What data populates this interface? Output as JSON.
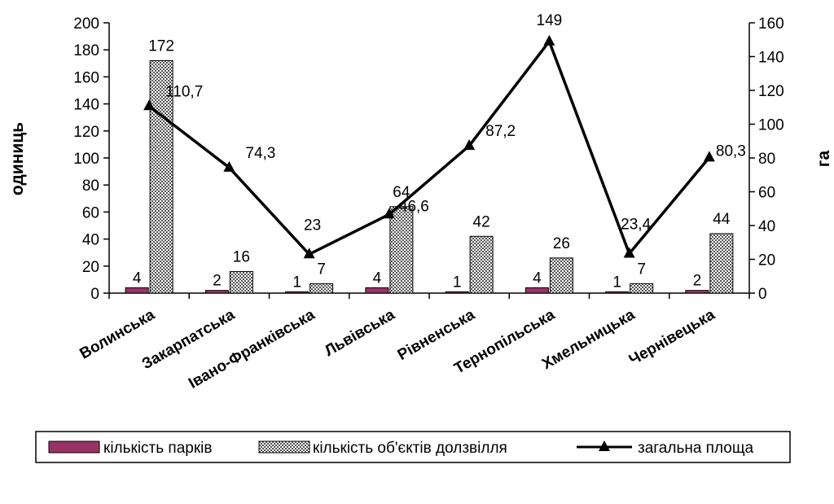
{
  "chart_data": {
    "type": "bar",
    "categories": [
      "Волинська",
      "Закарпатська",
      "Івано-Франківська",
      "Львівська",
      "Рівненська",
      "Тернопільська",
      "Хмельницька",
      "Чернівецька"
    ],
    "series": [
      {
        "name": "кількість парків",
        "type": "bar",
        "axis": "left",
        "values": [
          4,
          2,
          1,
          4,
          1,
          4,
          1,
          2
        ],
        "labels": [
          "4",
          "2",
          "1",
          "4",
          "1",
          "4",
          "1",
          "2"
        ],
        "color": "#993366"
      },
      {
        "name": "кількість об'єктів долзвілля",
        "type": "bar",
        "axis": "left",
        "values": [
          172,
          16,
          7,
          64,
          42,
          26,
          7,
          44
        ],
        "labels": [
          "172",
          "16",
          "7",
          "64",
          "42",
          "26",
          "7",
          "44"
        ],
        "pattern": "checker"
      },
      {
        "name": "загальна площа",
        "type": "line",
        "axis": "right",
        "marker": "triangle",
        "values": [
          110.7,
          74.3,
          23,
          46.6,
          87.2,
          149,
          23.4,
          80.3
        ],
        "labels": [
          "110,7",
          "74,3",
          "23",
          "46,6",
          "87,2",
          "149",
          "23,4",
          "80,3"
        ],
        "color": "#000000"
      }
    ],
    "y_left": {
      "label": "одиниць",
      "min": 0,
      "max": 200,
      "step": 20,
      "ticks": [
        "0",
        "20",
        "40",
        "60",
        "80",
        "100",
        "120",
        "140",
        "160",
        "180",
        "200"
      ]
    },
    "y_right": {
      "label": "га",
      "min": 0,
      "max": 160,
      "step": 20,
      "ticks": [
        "0",
        "20",
        "40",
        "60",
        "80",
        "100",
        "120",
        "140",
        "160"
      ]
    },
    "grid": false,
    "legend": "bottom",
    "legend_items": [
      {
        "label": "кількість парків",
        "kind": "bar-solid"
      },
      {
        "label": "кількість об'єктів долзвілля",
        "kind": "bar-checker"
      },
      {
        "label": "загальна площа",
        "kind": "line-triangle"
      }
    ]
  }
}
